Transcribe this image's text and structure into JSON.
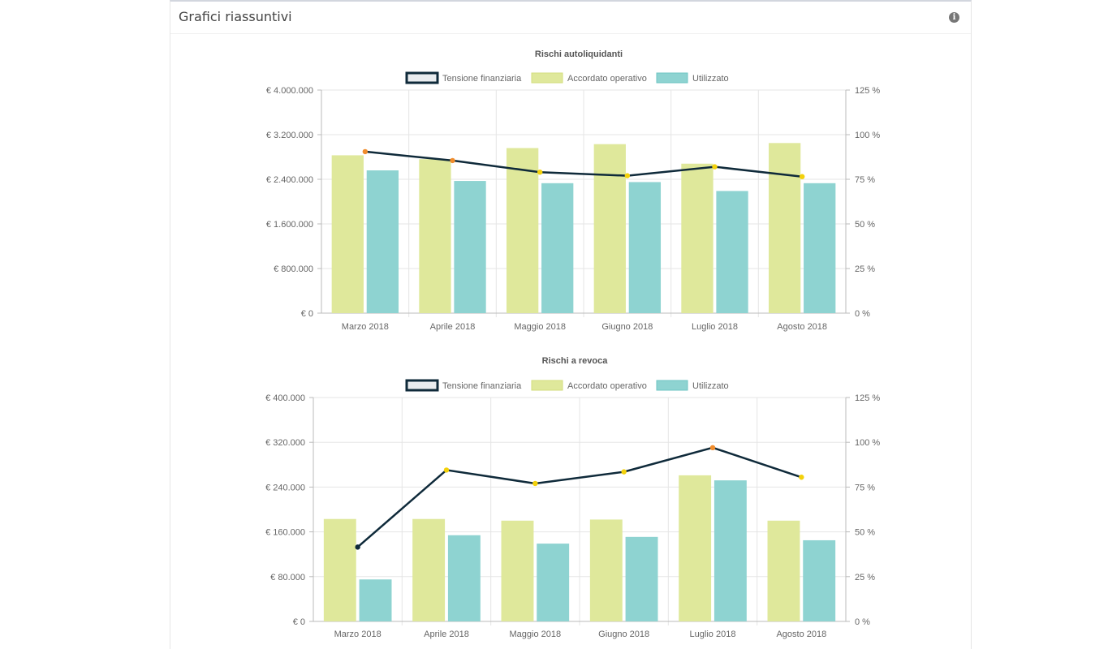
{
  "panel": {
    "title": "Grafici riassuntivi",
    "info_icon": "info-icon"
  },
  "colors": {
    "accordato": "#dfe89b",
    "accordato_border": "#d3de7d",
    "utilizzato": "#8ed3d1",
    "utilizzato_border": "#6fc6c3",
    "tensione": "#0f2a3a",
    "legend_tensione_fill": "#e9ecef",
    "point_orange": "#f08c2c",
    "point_yellow": "#f3d10b",
    "grid": "#e5e5e5"
  },
  "legend": [
    "Tensione finanziaria",
    "Accordato operativo",
    "Utilizzato"
  ],
  "chart_data": [
    {
      "type": "bar",
      "title": "Rischi autoliquidanti",
      "categories": [
        "Marzo 2018",
        "Aprile 2018",
        "Maggio 2018",
        "Giugno 2018",
        "Luglio 2018",
        "Agosto 2018"
      ],
      "left_ticks": [
        "€ 4.000.000",
        "€ 3.200.000",
        "€ 2.400.000",
        "€ 1.600.000",
        "€ 800.000",
        "€ 0"
      ],
      "right_ticks": [
        "125 %",
        "100 %",
        "75 %",
        "50 %",
        "25 %",
        "0 %"
      ],
      "ylim": [
        0,
        4000000
      ],
      "y2lim": [
        0,
        125
      ],
      "series": [
        {
          "name": "Accordato operativo",
          "type": "bar",
          "values": [
            2830000,
            2760000,
            2960000,
            3030000,
            2680000,
            3050000
          ]
        },
        {
          "name": "Utilizzato",
          "type": "bar",
          "values": [
            2560000,
            2370000,
            2330000,
            2350000,
            2190000,
            2330000
          ]
        },
        {
          "name": "Tensione finanziaria",
          "type": "line",
          "axis": "right",
          "values": [
            90.5,
            85.5,
            79,
            77,
            82,
            76.5
          ],
          "point_colors": [
            "orange",
            "orange",
            "yellow",
            "yellow",
            "yellow",
            "yellow"
          ]
        }
      ],
      "grid": true,
      "legend_position": "top"
    },
    {
      "type": "bar",
      "title": "Rischi a revoca",
      "categories": [
        "Marzo 2018",
        "Aprile 2018",
        "Maggio 2018",
        "Giugno 2018",
        "Luglio 2018",
        "Agosto 2018"
      ],
      "left_ticks": [
        "€ 400.000",
        "€ 320.000",
        "€ 240.000",
        "€ 160.000",
        "€ 80.000",
        "€ 0"
      ],
      "right_ticks": [
        "125 %",
        "100 %",
        "75 %",
        "50 %",
        "25 %",
        "0 %"
      ],
      "ylim": [
        0,
        400000
      ],
      "y2lim": [
        0,
        125
      ],
      "series": [
        {
          "name": "Accordato operativo",
          "type": "bar",
          "values": [
            183000,
            183000,
            180000,
            182000,
            261000,
            180000
          ]
        },
        {
          "name": "Utilizzato",
          "type": "bar",
          "values": [
            75000,
            154000,
            139000,
            151000,
            252000,
            145000
          ]
        },
        {
          "name": "Tensione finanziaria",
          "type": "line",
          "axis": "right",
          "values": [
            41.5,
            84.5,
            77,
            83.5,
            97,
            80.5
          ],
          "point_colors": [
            "dark",
            "yellow",
            "yellow",
            "yellow",
            "orange",
            "yellow"
          ]
        }
      ],
      "grid": true,
      "legend_position": "top"
    }
  ]
}
